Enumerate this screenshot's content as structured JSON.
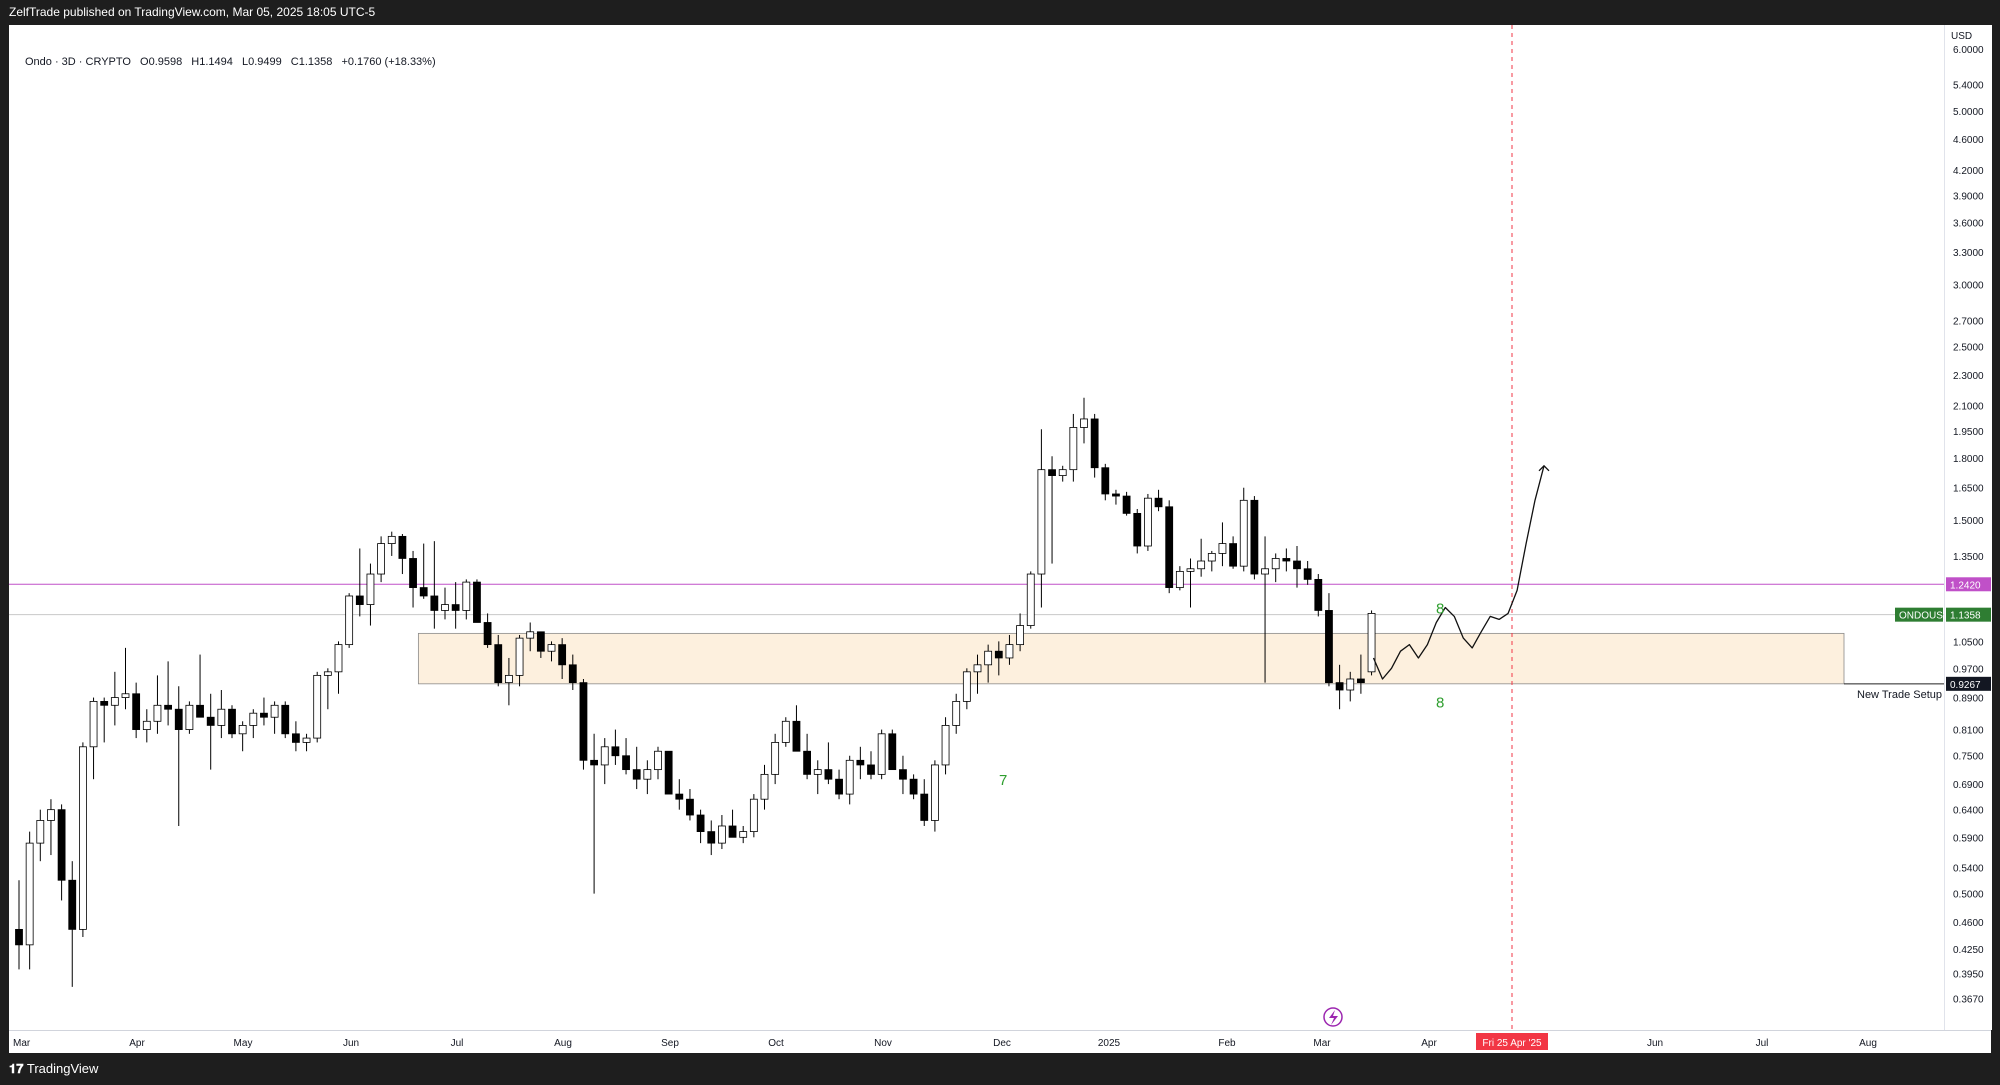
{
  "header": {
    "publish_line": "ZelfTrade published on TradingView.com, Mar 05, 2025 18:05 UTC-5"
  },
  "legend": {
    "symbol": "Ondo · 3D · CRYPTO",
    "open": "O0.9598",
    "high": "H1.1494",
    "low": "L0.9499",
    "close": "C1.1358",
    "change": "+0.1760 (+18.33%)"
  },
  "footer": {
    "brand": "TradingView"
  },
  "colors": {
    "bull_body": "#ffffff",
    "bear_body": "#000000",
    "candle_outline": "#000000",
    "zone_fill": "#fdf0de",
    "resistance_line": "#c050c8",
    "count_label": "#2e9e2e",
    "ticker_tag": "#2e7d32",
    "date_tag": "#f23645",
    "crosshair": "#f23645"
  },
  "chart_data": {
    "type": "candlestick",
    "symbol": "ONDOUSD",
    "timeframe": "3D",
    "scale": "log",
    "ylim": [
      0.355,
      6.25
    ],
    "price_unit": "USD",
    "y_ticks": [
      "6.0000",
      "5.4000",
      "5.0000",
      "4.6000",
      "4.2000",
      "3.9000",
      "3.6000",
      "3.3000",
      "3.0000",
      "2.7000",
      "2.5000",
      "2.3000",
      "2.1000",
      "1.9500",
      "1.8000",
      "1.6500",
      "1.5000",
      "1.3500",
      "1.0500",
      "0.9700",
      "0.8900",
      "0.8100",
      "0.7500",
      "0.6900",
      "0.6400",
      "0.5900",
      "0.5400",
      "0.5000",
      "0.4600",
      "0.4250",
      "0.3950",
      "0.3670"
    ],
    "x_ticks": [
      "Mar",
      "Apr",
      "May",
      "Jun",
      "Jul",
      "Aug",
      "Sep",
      "Oct",
      "Nov",
      "Dec",
      "2025",
      "Feb",
      "Mar",
      "Apr",
      "Fri 25 Apr '25",
      "Jun",
      "Jul",
      "Aug"
    ],
    "candles": [
      [
        0.45,
        0.52,
        0.4,
        0.43
      ],
      [
        0.43,
        0.6,
        0.4,
        0.58
      ],
      [
        0.58,
        0.64,
        0.55,
        0.62
      ],
      [
        0.62,
        0.66,
        0.56,
        0.64
      ],
      [
        0.64,
        0.65,
        0.49,
        0.52
      ],
      [
        0.52,
        0.55,
        0.38,
        0.45
      ],
      [
        0.45,
        0.78,
        0.44,
        0.77
      ],
      [
        0.77,
        0.89,
        0.7,
        0.88
      ],
      [
        0.88,
        0.89,
        0.78,
        0.87
      ],
      [
        0.87,
        0.96,
        0.82,
        0.89
      ],
      [
        0.89,
        1.03,
        0.86,
        0.9
      ],
      [
        0.9,
        0.93,
        0.79,
        0.81
      ],
      [
        0.81,
        0.86,
        0.78,
        0.83
      ],
      [
        0.83,
        0.95,
        0.8,
        0.87
      ],
      [
        0.87,
        0.99,
        0.82,
        0.86
      ],
      [
        0.86,
        0.92,
        0.61,
        0.81
      ],
      [
        0.81,
        0.88,
        0.8,
        0.87
      ],
      [
        0.87,
        1.01,
        0.84,
        0.84
      ],
      [
        0.84,
        0.9,
        0.72,
        0.82
      ],
      [
        0.82,
        0.91,
        0.79,
        0.86
      ],
      [
        0.86,
        0.87,
        0.79,
        0.8
      ],
      [
        0.8,
        0.83,
        0.76,
        0.82
      ],
      [
        0.82,
        0.86,
        0.79,
        0.85
      ],
      [
        0.85,
        0.89,
        0.82,
        0.84
      ],
      [
        0.84,
        0.88,
        0.8,
        0.87
      ],
      [
        0.87,
        0.88,
        0.79,
        0.8
      ],
      [
        0.8,
        0.83,
        0.76,
        0.78
      ],
      [
        0.78,
        0.8,
        0.76,
        0.79
      ],
      [
        0.79,
        0.96,
        0.78,
        0.95
      ],
      [
        0.95,
        0.97,
        0.86,
        0.96
      ],
      [
        0.96,
        1.05,
        0.9,
        1.04
      ],
      [
        1.04,
        1.21,
        1.03,
        1.2
      ],
      [
        1.2,
        1.38,
        1.13,
        1.17
      ],
      [
        1.17,
        1.32,
        1.1,
        1.28
      ],
      [
        1.28,
        1.43,
        1.25,
        1.4
      ],
      [
        1.4,
        1.45,
        1.35,
        1.43
      ],
      [
        1.43,
        1.44,
        1.28,
        1.34
      ],
      [
        1.34,
        1.37,
        1.16,
        1.23
      ],
      [
        1.23,
        1.4,
        1.19,
        1.2
      ],
      [
        1.2,
        1.41,
        1.09,
        1.15
      ],
      [
        1.15,
        1.23,
        1.12,
        1.17
      ],
      [
        1.17,
        1.25,
        1.09,
        1.15
      ],
      [
        1.15,
        1.26,
        1.12,
        1.25
      ],
      [
        1.25,
        1.26,
        1.12,
        1.11
      ],
      [
        1.11,
        1.14,
        1.03,
        1.04
      ],
      [
        1.04,
        1.07,
        0.92,
        0.93
      ],
      [
        0.93,
        1.0,
        0.87,
        0.95
      ],
      [
        0.95,
        1.07,
        0.92,
        1.06
      ],
      [
        1.06,
        1.11,
        1.02,
        1.08
      ],
      [
        1.08,
        1.08,
        1.0,
        1.02
      ],
      [
        1.02,
        1.05,
        0.99,
        1.04
      ],
      [
        1.04,
        1.06,
        0.94,
        0.98
      ],
      [
        0.98,
        1.01,
        0.91,
        0.93
      ],
      [
        0.93,
        0.94,
        0.72,
        0.74
      ],
      [
        0.74,
        0.8,
        0.5,
        0.73
      ],
      [
        0.73,
        0.79,
        0.69,
        0.77
      ],
      [
        0.77,
        0.81,
        0.73,
        0.75
      ],
      [
        0.75,
        0.79,
        0.71,
        0.72
      ],
      [
        0.72,
        0.77,
        0.68,
        0.7
      ],
      [
        0.7,
        0.74,
        0.67,
        0.72
      ],
      [
        0.72,
        0.77,
        0.7,
        0.76
      ],
      [
        0.76,
        0.76,
        0.68,
        0.67
      ],
      [
        0.67,
        0.7,
        0.64,
        0.66
      ],
      [
        0.66,
        0.68,
        0.62,
        0.63
      ],
      [
        0.63,
        0.64,
        0.58,
        0.6
      ],
      [
        0.6,
        0.62,
        0.56,
        0.58
      ],
      [
        0.58,
        0.63,
        0.57,
        0.61
      ],
      [
        0.61,
        0.64,
        0.59,
        0.59
      ],
      [
        0.59,
        0.61,
        0.58,
        0.6
      ],
      [
        0.6,
        0.67,
        0.59,
        0.66
      ],
      [
        0.66,
        0.73,
        0.64,
        0.71
      ],
      [
        0.71,
        0.8,
        0.69,
        0.78
      ],
      [
        0.78,
        0.84,
        0.77,
        0.83
      ],
      [
        0.83,
        0.87,
        0.76,
        0.76
      ],
      [
        0.76,
        0.8,
        0.7,
        0.71
      ],
      [
        0.71,
        0.74,
        0.67,
        0.72
      ],
      [
        0.72,
        0.78,
        0.69,
        0.7
      ],
      [
        0.7,
        0.72,
        0.66,
        0.67
      ],
      [
        0.67,
        0.75,
        0.65,
        0.74
      ],
      [
        0.74,
        0.77,
        0.7,
        0.73
      ],
      [
        0.73,
        0.76,
        0.7,
        0.71
      ],
      [
        0.71,
        0.81,
        0.7,
        0.8
      ],
      [
        0.8,
        0.81,
        0.73,
        0.72
      ],
      [
        0.72,
        0.75,
        0.67,
        0.7
      ],
      [
        0.7,
        0.71,
        0.66,
        0.67
      ],
      [
        0.67,
        0.7,
        0.61,
        0.62
      ],
      [
        0.62,
        0.74,
        0.6,
        0.73
      ],
      [
        0.73,
        0.84,
        0.71,
        0.82
      ],
      [
        0.82,
        0.9,
        0.8,
        0.88
      ],
      [
        0.88,
        0.97,
        0.86,
        0.96
      ],
      [
        0.96,
        1.01,
        0.9,
        0.98
      ],
      [
        0.98,
        1.04,
        0.93,
        1.02
      ],
      [
        1.02,
        1.05,
        0.95,
        1.0
      ],
      [
        1.0,
        1.07,
        0.98,
        1.04
      ],
      [
        1.04,
        1.14,
        1.02,
        1.1
      ],
      [
        1.1,
        1.29,
        1.09,
        1.28
      ],
      [
        1.28,
        1.96,
        1.16,
        1.74
      ],
      [
        1.74,
        1.81,
        1.32,
        1.71
      ],
      [
        1.71,
        1.76,
        1.68,
        1.74
      ],
      [
        1.74,
        2.05,
        1.68,
        1.97
      ],
      [
        1.97,
        2.15,
        1.88,
        2.02
      ],
      [
        2.02,
        2.05,
        1.7,
        1.75
      ],
      [
        1.75,
        1.77,
        1.59,
        1.62
      ],
      [
        1.62,
        1.64,
        1.57,
        1.61
      ],
      [
        1.61,
        1.63,
        1.52,
        1.53
      ],
      [
        1.53,
        1.55,
        1.36,
        1.39
      ],
      [
        1.39,
        1.62,
        1.37,
        1.6
      ],
      [
        1.6,
        1.64,
        1.54,
        1.56
      ],
      [
        1.56,
        1.59,
        1.21,
        1.23
      ],
      [
        1.23,
        1.31,
        1.22,
        1.29
      ],
      [
        1.29,
        1.34,
        1.16,
        1.3
      ],
      [
        1.3,
        1.42,
        1.27,
        1.33
      ],
      [
        1.33,
        1.37,
        1.29,
        1.36
      ],
      [
        1.36,
        1.49,
        1.31,
        1.4
      ],
      [
        1.4,
        1.43,
        1.3,
        1.31
      ],
      [
        1.31,
        1.65,
        1.29,
        1.59
      ],
      [
        1.59,
        1.61,
        1.26,
        1.28
      ],
      [
        1.28,
        1.43,
        0.93,
        1.3
      ],
      [
        1.3,
        1.36,
        1.25,
        1.34
      ],
      [
        1.34,
        1.38,
        1.29,
        1.33
      ],
      [
        1.33,
        1.39,
        1.23,
        1.3
      ],
      [
        1.3,
        1.33,
        1.24,
        1.26
      ],
      [
        1.26,
        1.28,
        1.13,
        1.15
      ],
      [
        1.15,
        1.21,
        0.92,
        0.93
      ],
      [
        0.93,
        0.98,
        0.86,
        0.91
      ],
      [
        0.91,
        0.96,
        0.88,
        0.94
      ],
      [
        0.94,
        1.01,
        0.9,
        0.93
      ],
      [
        0.96,
        1.15,
        0.95,
        1.14
      ]
    ],
    "current_price": 1.1358,
    "current_label": "ONDOUSD",
    "resistance_line": 1.242,
    "demand_zone": {
      "top": 1.075,
      "bottom": 0.9267
    },
    "setup_label": "New Trade Setup",
    "count_labels": [
      {
        "text": "7",
        "price": 0.7
      },
      {
        "text": "8",
        "price": 1.16
      },
      {
        "text": "8",
        "price": 0.88
      }
    ],
    "projection_path": [
      1.0,
      0.94,
      0.97,
      1.02,
      1.04,
      1.0,
      1.04,
      1.11,
      1.16,
      1.13,
      1.06,
      1.03,
      1.08,
      1.13,
      1.12,
      1.14,
      1.22,
      1.4,
      1.59,
      1.76
    ],
    "projection_date": "Fri 25 Apr '25"
  },
  "axis": {
    "currency": "USD",
    "ticker_tag": "ONDOUSD",
    "ticker_value": "1.1358",
    "line_value": "1.2420",
    "zone_value": "0.9267"
  }
}
